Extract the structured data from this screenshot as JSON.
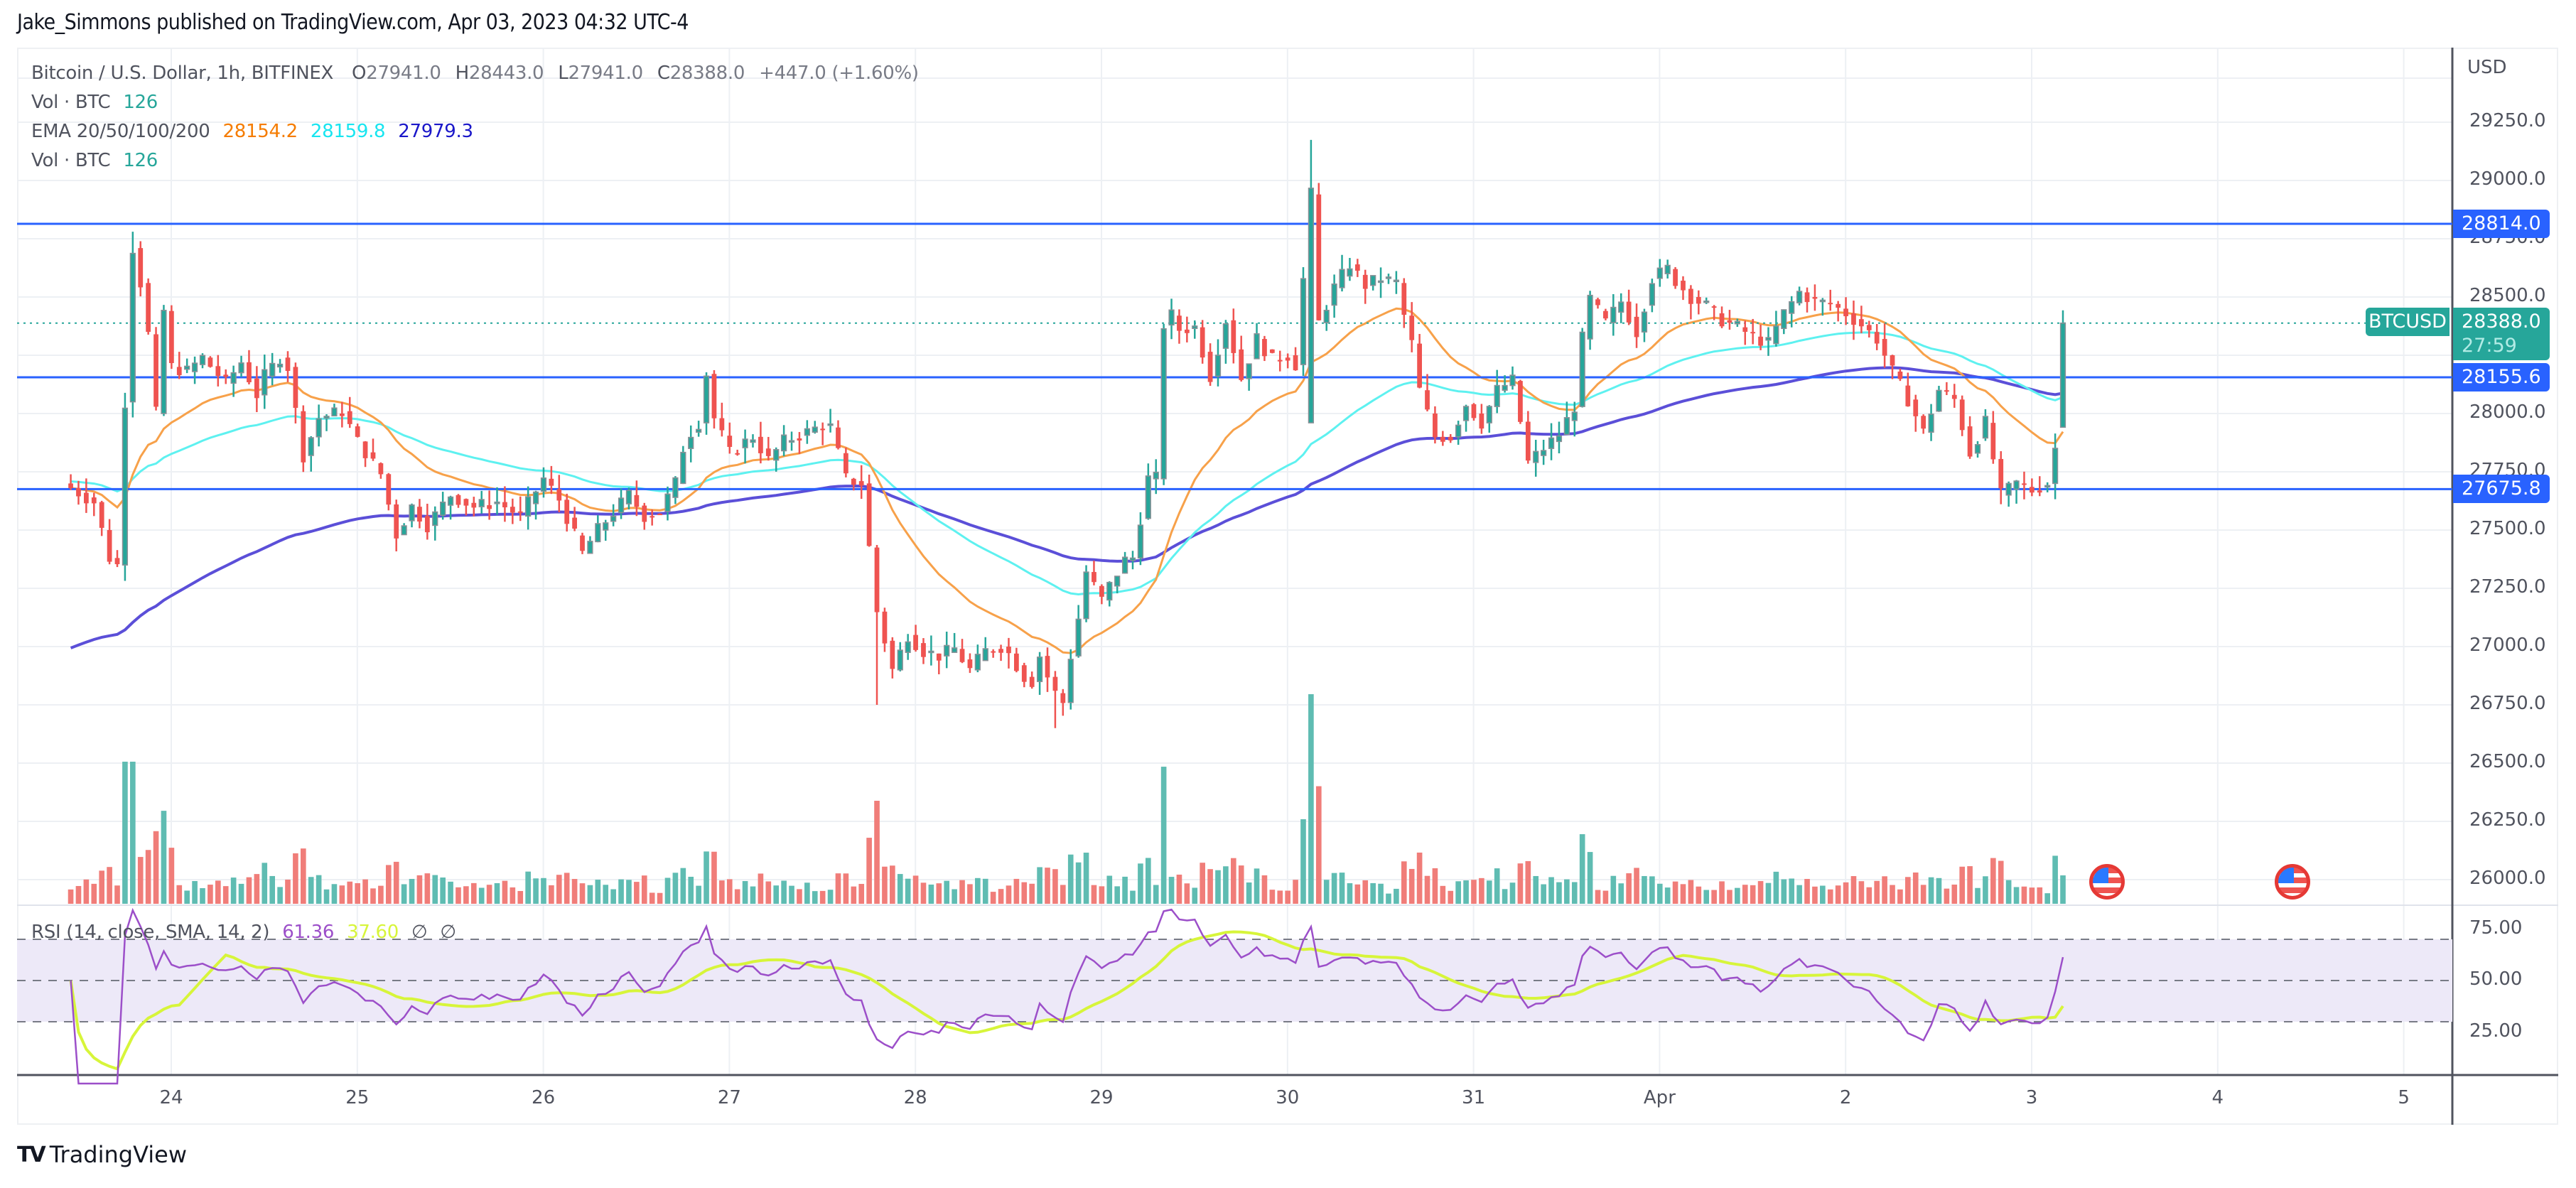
{
  "publisher_line": "Jake_Simmons published on TradingView.com, Apr 03, 2023 04:32 UTC-4",
  "legend": {
    "symbol": "Bitcoin / U.S. Dollar, 1h, BITFINEX",
    "open_label": "O",
    "open": "27941.0",
    "high_label": "H",
    "high": "28443.0",
    "low_label": "L",
    "low": "27941.0",
    "close_label": "C",
    "close": "28388.0",
    "change": "+447.0 (+1.60%)",
    "vol1_label": "Vol · BTC",
    "vol1_value": "126",
    "ema_label": "EMA 20/50/100/200",
    "ema_values": [
      "28154.2",
      "28159.8",
      "27979.3"
    ],
    "vol2_label": "Vol · BTC",
    "vol2_value": "126"
  },
  "rsi_legend": {
    "label": "RSI (14, close, SMA, 14, 2)",
    "rsi": "61.36",
    "sma": "37.60",
    "na1": "∅",
    "na2": "∅"
  },
  "price_axis": {
    "currency": "USD",
    "ticks": [
      "29250.0",
      "29000.0",
      "28750.0",
      "28500.0",
      "28250.0",
      "28000.0",
      "27750.0",
      "27500.0",
      "27250.0",
      "27000.0",
      "26750.0",
      "26500.0",
      "26250.0",
      "26000.0"
    ]
  },
  "rsi_axis": {
    "ticks": [
      "75.00",
      "50.00",
      "25.00"
    ]
  },
  "time_axis": {
    "ticks": [
      "24",
      "25",
      "26",
      "27",
      "28",
      "29",
      "30",
      "31",
      "Apr",
      "2",
      "3",
      "4",
      "5"
    ]
  },
  "horizontal_lines": [
    {
      "price": 28814.0,
      "label": "28814.0"
    },
    {
      "price": 28155.6,
      "label": "28155.6"
    },
    {
      "price": 27675.8,
      "label": "27675.8"
    }
  ],
  "last_price": {
    "symbol": "BTCUSD",
    "price": "28388.0",
    "countdown": "27:59"
  },
  "colors": {
    "up": "#26a69a",
    "down": "#ef5350",
    "ema20": "#f7a14a",
    "ema50": "#5ef1f0",
    "ema100": "#5b4fd8",
    "hline": "#2962ff",
    "rsi": "#9c4fc9",
    "rsi_sma": "#d7f53a",
    "rsi_band": "#ede9f8"
  },
  "brand": "TradingView",
  "chart_data": {
    "type": "candlestick",
    "title": "Bitcoin / U.S. Dollar, 1h, BITFINEX",
    "xlabel": "",
    "ylabel": "USD",
    "ylim": [
      25900,
      29350
    ],
    "x_range": [
      "2023-03-23 01:00",
      "2023-04-03 04:00"
    ],
    "x_ticks": [
      "24",
      "25",
      "26",
      "27",
      "28",
      "29",
      "30",
      "31",
      "Apr",
      "2",
      "3",
      "4",
      "5"
    ],
    "close_anchors_hourly": [
      [
        0,
        27680
      ],
      [
        3,
        27620
      ],
      [
        5,
        27380
      ],
      [
        6,
        27350
      ],
      [
        7,
        28050
      ],
      [
        8,
        28710
      ],
      [
        9,
        28560
      ],
      [
        10,
        28340
      ],
      [
        11,
        28000
      ],
      [
        12,
        28440
      ],
      [
        13,
        28200
      ],
      [
        15,
        28180
      ],
      [
        17,
        28240
      ],
      [
        20,
        28130
      ],
      [
        22,
        28220
      ],
      [
        24,
        28080
      ],
      [
        25,
        28160
      ],
      [
        27,
        28240
      ],
      [
        28,
        28200
      ],
      [
        30,
        27820
      ],
      [
        32,
        27980
      ],
      [
        35,
        28010
      ],
      [
        37,
        27880
      ],
      [
        40,
        27740
      ],
      [
        42,
        27480
      ],
      [
        44,
        27600
      ],
      [
        46,
        27520
      ],
      [
        49,
        27650
      ],
      [
        52,
        27600
      ],
      [
        55,
        27620
      ],
      [
        58,
        27560
      ],
      [
        61,
        27720
      ],
      [
        63,
        27630
      ],
      [
        66,
        27400
      ],
      [
        68,
        27500
      ],
      [
        72,
        27650
      ],
      [
        74,
        27560
      ],
      [
        76,
        27580
      ],
      [
        78,
        27700
      ],
      [
        79,
        27850
      ],
      [
        80,
        27920
      ],
      [
        81,
        27960
      ],
      [
        82,
        28170
      ],
      [
        83,
        27980
      ],
      [
        85,
        27830
      ],
      [
        88,
        27900
      ],
      [
        90,
        27800
      ],
      [
        92,
        27880
      ],
      [
        95,
        27920
      ],
      [
        97,
        27950
      ],
      [
        98,
        27940
      ],
      [
        100,
        27720
      ],
      [
        102,
        27700
      ],
      [
        104,
        27150
      ],
      [
        106,
        26900
      ],
      [
        108,
        27050
      ],
      [
        110,
        26980
      ],
      [
        112,
        26960
      ],
      [
        114,
        26990
      ],
      [
        116,
        26900
      ],
      [
        118,
        26980
      ],
      [
        120,
        27000
      ],
      [
        121,
        26970
      ],
      [
        123,
        26870
      ],
      [
        124,
        26850
      ],
      [
        125,
        26960
      ],
      [
        126,
        26870
      ],
      [
        127,
        26800
      ],
      [
        128,
        26760
      ],
      [
        129,
        26960
      ],
      [
        130,
        27120
      ],
      [
        131,
        27320
      ],
      [
        133,
        27200
      ],
      [
        134,
        27260
      ],
      [
        136,
        27370
      ],
      [
        137,
        27380
      ],
      [
        139,
        27720
      ],
      [
        140,
        27720
      ],
      [
        141,
        28380
      ],
      [
        142,
        28420
      ],
      [
        143,
        28360
      ],
      [
        145,
        28370
      ],
      [
        147,
        28160
      ],
      [
        149,
        28400
      ],
      [
        151,
        28150
      ],
      [
        153,
        28320
      ],
      [
        155,
        28230
      ],
      [
        157,
        28250
      ],
      [
        158,
        28210
      ],
      [
        160,
        28940
      ],
      [
        161,
        28390
      ],
      [
        163,
        28540
      ],
      [
        165,
        28640
      ],
      [
        167,
        28550
      ],
      [
        169,
        28580
      ],
      [
        171,
        28560
      ],
      [
        172,
        28420
      ],
      [
        173,
        28300
      ],
      [
        174,
        28100
      ],
      [
        176,
        27900
      ],
      [
        178,
        27900
      ],
      [
        180,
        28040
      ],
      [
        182,
        27960
      ],
      [
        184,
        28100
      ],
      [
        186,
        28140
      ],
      [
        188,
        27790
      ],
      [
        190,
        27850
      ],
      [
        192,
        27910
      ],
      [
        194,
        28030
      ],
      [
        195,
        28320
      ],
      [
        196,
        28490
      ],
      [
        198,
        28390
      ],
      [
        200,
        28480
      ],
      [
        202,
        28350
      ],
      [
        204,
        28580
      ],
      [
        206,
        28620
      ],
      [
        207,
        28570
      ],
      [
        209,
        28500
      ],
      [
        211,
        28460
      ],
      [
        213,
        28400
      ],
      [
        215,
        28370
      ],
      [
        217,
        28330
      ],
      [
        219,
        28300
      ],
      [
        221,
        28430
      ],
      [
        223,
        28520
      ],
      [
        225,
        28480
      ],
      [
        227,
        28470
      ],
      [
        229,
        28430
      ],
      [
        231,
        28380
      ],
      [
        233,
        28320
      ],
      [
        235,
        28180
      ],
      [
        237,
        28060
      ],
      [
        239,
        27920
      ],
      [
        241,
        28100
      ],
      [
        243,
        28060
      ],
      [
        245,
        27830
      ],
      [
        247,
        27960
      ],
      [
        249,
        27650
      ],
      [
        251,
        27700
      ],
      [
        253,
        27670
      ],
      [
        255,
        27700
      ],
      [
        256,
        27850
      ],
      [
        257,
        28388
      ]
    ],
    "ema": [
      {
        "name": "EMA 20",
        "last": 28154.2
      },
      {
        "name": "EMA 50",
        "last": 28159.8
      },
      {
        "name": "EMA 100",
        "last": 27979.3
      }
    ],
    "hlines": [
      28814.0,
      28155.6,
      27675.8
    ],
    "volume_last": 126,
    "rsi": {
      "last": 61.36,
      "sma_last": 37.6,
      "bands": [
        70,
        50,
        30
      ],
      "ylim": [
        15,
        85
      ]
    }
  }
}
